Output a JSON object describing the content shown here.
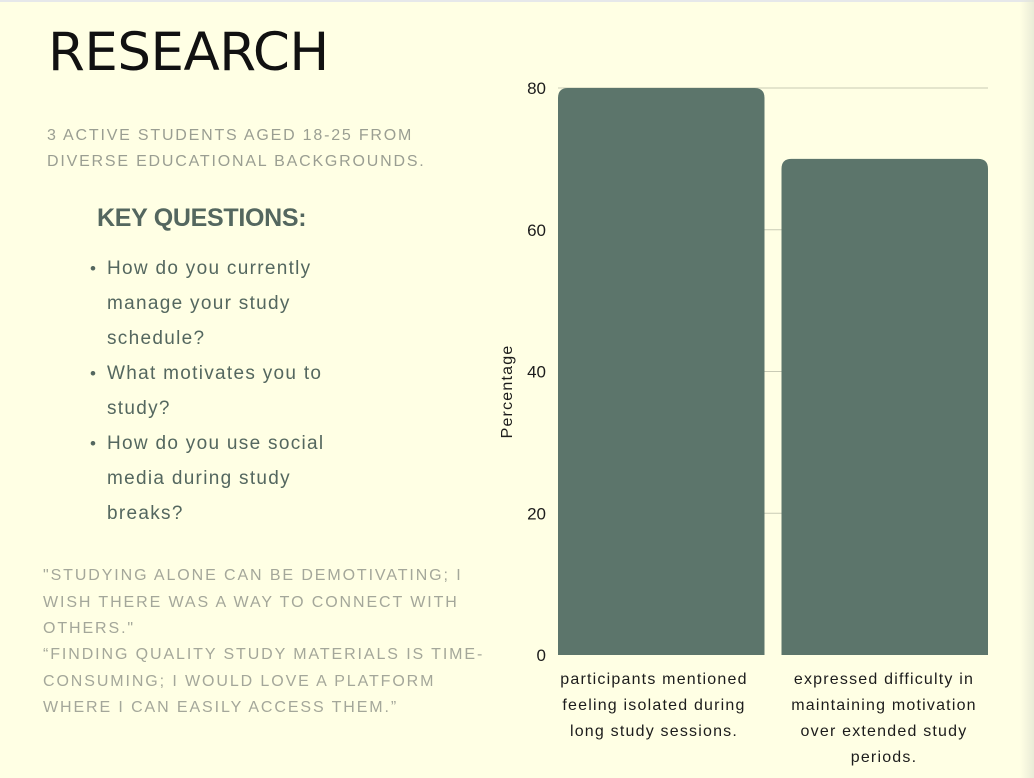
{
  "title": "RESEARCH",
  "subtitle": "3 ACTIVE STUDENTS AGED 18-25 FROM DIVERSE EDUCATIONAL BACKGROUNDS.",
  "key_questions": {
    "heading": "KEY QUESTIONS:",
    "items": [
      "How do you currently manage your study schedule?",
      "What motivates you to study?",
      "How do you use social media during study breaks?"
    ]
  },
  "quotes": [
    "\"STUDYING ALONE CAN BE DEMOTIVATING; I WISH THERE WAS A WAY TO CONNECT WITH OTHERS.\"",
    "“FINDING QUALITY STUDY MATERIALS IS TIME-CONSUMING; I WOULD LOVE A PLATFORM WHERE I CAN EASILY ACCESS THEM.”"
  ],
  "chart_data": {
    "type": "bar",
    "title": "",
    "xlabel": "",
    "ylabel": "Percentage",
    "categories": [
      "participants mentioned feeling isolated during long study sessions.",
      "expressed difficulty in maintaining motivation over extended study periods."
    ],
    "values": [
      80,
      70
    ],
    "ylim": [
      0,
      80
    ],
    "yticks": [
      0,
      20,
      40,
      60,
      80
    ],
    "grid": true,
    "legend": "none",
    "colors": {
      "bar": "#5c756b",
      "grid": "#c9cbb5",
      "axis_text": "#1c1c1c"
    }
  }
}
